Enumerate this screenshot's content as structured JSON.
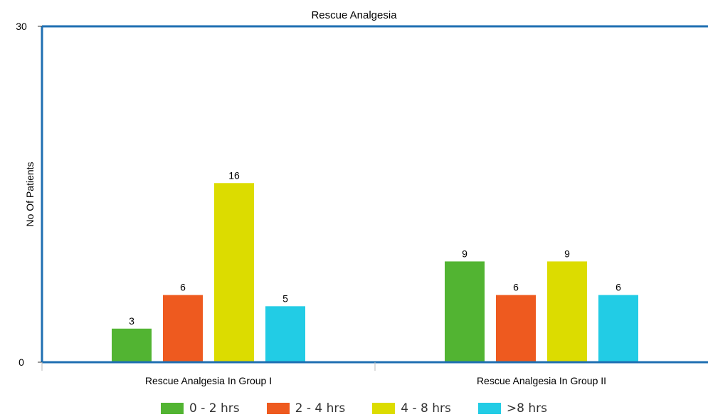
{
  "chart_data": {
    "type": "bar",
    "title": "Rescue Analgesia",
    "xlabel": "",
    "ylabel": "No Of Patients",
    "ylim": [
      0,
      30
    ],
    "yticks": [
      0,
      30
    ],
    "categories": [
      "Rescue Analgesia In Group I",
      "Rescue Analgesia In Group II"
    ],
    "series": [
      {
        "name": "0 - 2 hrs",
        "values": [
          3,
          9
        ],
        "color": "#52b432"
      },
      {
        "name": "2 - 4 hrs",
        "values": [
          6,
          6
        ],
        "color": "#ee5a1f"
      },
      {
        "name": "4 - 8 hrs",
        "values": [
          16,
          9
        ],
        "color": "#dcdc00"
      },
      {
        "name": ">8 hrs",
        "values": [
          5,
          6
        ],
        "color": "#22cce5"
      }
    ],
    "grid": false,
    "legend": "bottom",
    "axis_color": "#1f6fb2"
  }
}
